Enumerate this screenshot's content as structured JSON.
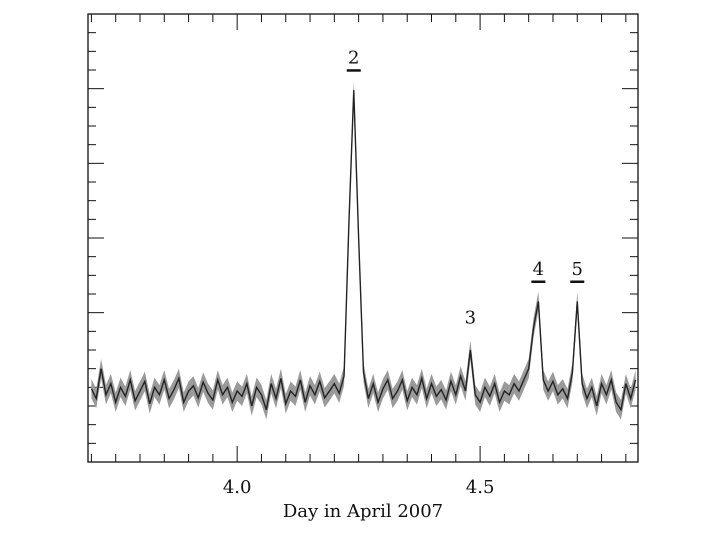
{
  "chart_data": {
    "type": "line",
    "xlabel": "Day in April 2007",
    "xlim": [
      3.693,
      4.825
    ],
    "ylim": [
      0,
      6
    ],
    "xticks": [
      {
        "value": 4,
        "label": "4.0"
      },
      {
        "value": 4.5,
        "label": "4.5"
      }
    ],
    "xminorticks": [
      3.7,
      3.75,
      3.8,
      3.85,
      3.9,
      3.95,
      4.05,
      4.1,
      4.15,
      4.2,
      4.25,
      4.3,
      4.35,
      4.4,
      4.45,
      4.55,
      4.6,
      4.65,
      4.7,
      4.75,
      4.8
    ],
    "yticks": [
      1,
      2,
      3,
      4,
      5
    ],
    "yminorticks": [
      0.25,
      0.5,
      0.75,
      1.25,
      1.5,
      1.75,
      2.25,
      2.5,
      2.75,
      3.25,
      3.5,
      3.75,
      4.25,
      4.5,
      4.75,
      5.25,
      5.5,
      5.75
    ],
    "ytick_labels": false,
    "x": [
      3.7,
      3.71,
      3.72,
      3.73,
      3.74,
      3.75,
      3.76,
      3.77,
      3.78,
      3.79,
      3.8,
      3.81,
      3.82,
      3.83,
      3.84,
      3.85,
      3.86,
      3.87,
      3.88,
      3.89,
      3.9,
      3.91,
      3.92,
      3.93,
      3.94,
      3.95,
      3.96,
      3.97,
      3.98,
      3.99,
      4.0,
      4.01,
      4.02,
      4.03,
      4.04,
      4.05,
      4.06,
      4.07,
      4.08,
      4.09,
      4.1,
      4.11,
      4.12,
      4.13,
      4.14,
      4.15,
      4.16,
      4.17,
      4.18,
      4.19,
      4.2,
      4.21,
      4.22,
      4.23,
      4.24,
      4.25,
      4.26,
      4.27,
      4.28,
      4.29,
      4.3,
      4.31,
      4.32,
      4.33,
      4.34,
      4.35,
      4.36,
      4.37,
      4.38,
      4.39,
      4.4,
      4.41,
      4.42,
      4.43,
      4.44,
      4.45,
      4.46,
      4.47,
      4.48,
      4.49,
      4.5,
      4.51,
      4.52,
      4.53,
      4.54,
      4.55,
      4.56,
      4.57,
      4.58,
      4.59,
      4.6,
      4.61,
      4.62,
      4.63,
      4.64,
      4.65,
      4.66,
      4.67,
      4.68,
      4.69,
      4.7,
      4.71,
      4.72,
      4.73,
      4.74,
      4.75,
      4.76,
      4.77,
      4.78,
      4.79,
      4.8,
      4.81,
      4.82
    ],
    "series": [
      {
        "color": "#222222",
        "band_color": "#9a9a9a",
        "error": 0.13,
        "values": [
          0.98,
          0.85,
          1.25,
          0.9,
          1.05,
          0.8,
          1.0,
          0.88,
          1.1,
          0.82,
          0.95,
          1.08,
          0.78,
          1.0,
          0.9,
          1.1,
          0.85,
          0.97,
          1.12,
          0.8,
          0.95,
          1.02,
          0.86,
          1.07,
          0.92,
          0.83,
          1.1,
          0.9,
          1.0,
          0.8,
          0.95,
          0.88,
          1.05,
          0.75,
          1.0,
          0.9,
          0.7,
          1.05,
          0.85,
          1.12,
          0.78,
          0.95,
          0.88,
          1.1,
          0.8,
          1.02,
          0.9,
          1.08,
          0.86,
          0.95,
          1.05,
          0.92,
          1.15,
          3.2,
          4.98,
          3.0,
          1.2,
          0.85,
          1.05,
          0.8,
          0.98,
          1.1,
          0.85,
          0.95,
          1.1,
          0.82,
          1.0,
          0.9,
          1.12,
          0.85,
          1.05,
          0.88,
          0.97,
          0.83,
          1.08,
          0.9,
          1.15,
          0.95,
          1.5,
          0.9,
          0.8,
          1.0,
          0.88,
          1.05,
          0.8,
          0.95,
          0.9,
          1.05,
          0.95,
          1.1,
          1.25,
          1.8,
          2.15,
          1.1,
          0.95,
          1.08,
          0.9,
          0.98,
          0.85,
          1.2,
          2.15,
          1.05,
          0.85,
          1.0,
          0.75,
          1.05,
          0.9,
          1.1,
          0.8,
          0.7,
          1.05,
          0.85,
          1.1
        ]
      }
    ],
    "annotations": [
      {
        "text": "2",
        "x": 4.24,
        "underline": true
      },
      {
        "text": "3",
        "x": 4.48,
        "underline": false
      },
      {
        "text": "4",
        "x": 4.62,
        "underline": true
      },
      {
        "text": "5",
        "x": 4.7,
        "underline": true
      }
    ]
  }
}
